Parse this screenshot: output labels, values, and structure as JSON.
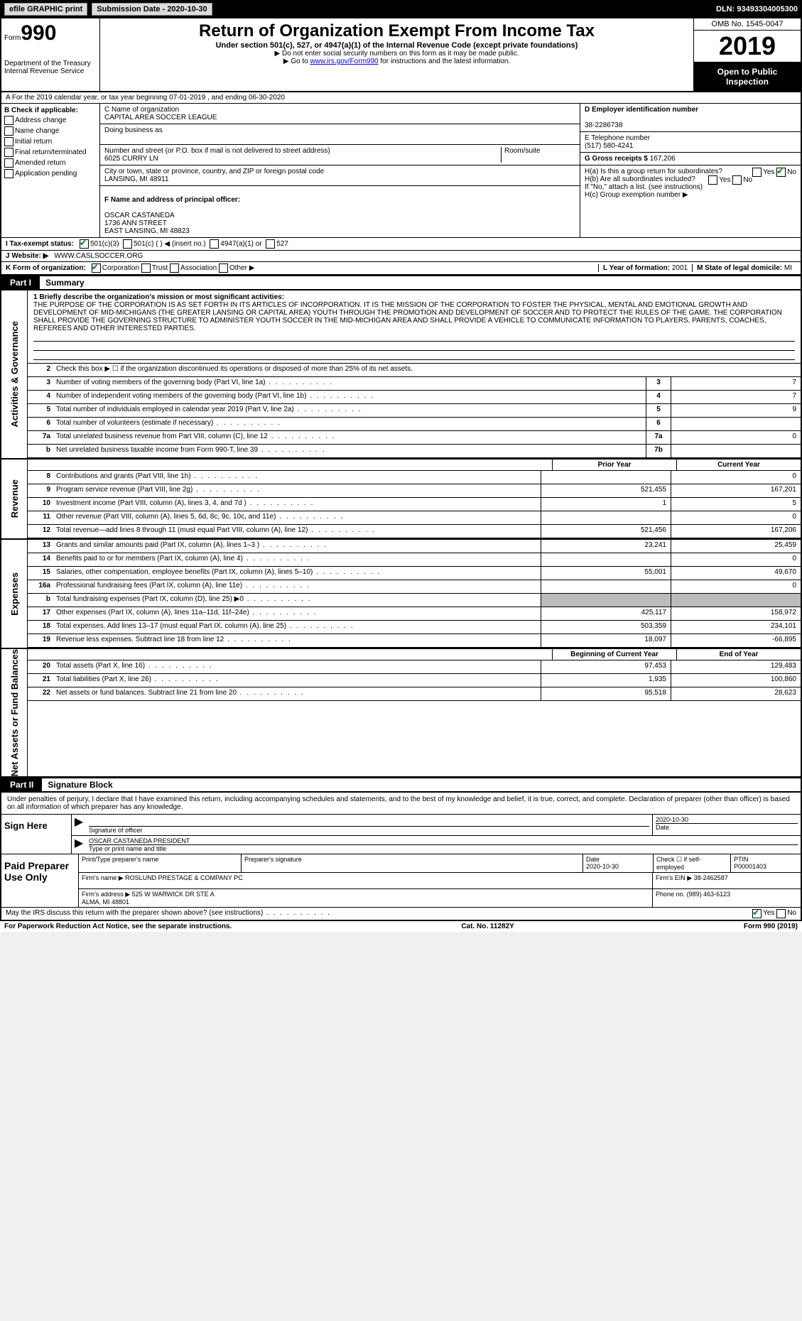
{
  "topbar": {
    "efile": "efile GRAPHIC print",
    "submission": "Submission Date - 2020-10-30",
    "dln": "DLN: 93493304005300"
  },
  "header": {
    "form": "Form",
    "num": "990",
    "dept": "Department of the Treasury\nInternal Revenue Service",
    "title": "Return of Organization Exempt From Income Tax",
    "sub": "Under section 501(c), 527, or 4947(a)(1) of the Internal Revenue Code (except private foundations)",
    "note1": "▶ Do not enter social security numbers on this form as it may be made public.",
    "note2": "▶ Go to ",
    "link": "www.irs.gov/Form990",
    "note3": " for instructions and the latest information.",
    "omb": "OMB No. 1545-0047",
    "year": "2019",
    "open": "Open to Public Inspection"
  },
  "rowA": "A For the 2019 calendar year, or tax year beginning 07-01-2019   , and ending 06-30-2020",
  "colB": {
    "title": "B Check if applicable:",
    "items": [
      "Address change",
      "Name change",
      "Initial return",
      "Final return/terminated",
      "Amended return",
      "Application pending"
    ]
  },
  "colC": {
    "name_lbl": "C Name of organization",
    "name": "CAPITAL AREA SOCCER LEAGUE",
    "dba_lbl": "Doing business as",
    "dba": "",
    "addr_lbl": "Number and street (or P.O. box if mail is not delivered to street address)",
    "addr": "6025 CURRY LN",
    "room_lbl": "Room/suite",
    "city_lbl": "City or town, state or province, country, and ZIP or foreign postal code",
    "city": "LANSING, MI  48911",
    "officer_lbl": "F Name and address of principal officer:",
    "officer": "OSCAR CASTANEDA\n1736 ANN STREET\nEAST LANSING, MI  48823"
  },
  "colD": {
    "ein_lbl": "D Employer identification number",
    "ein": "38-2286738",
    "phone_lbl": "E Telephone number",
    "phone": "(517) 580-4241",
    "gross_lbl": "G Gross receipts $",
    "gross": "167,206",
    "ha": "H(a)  Is this a group return for subordinates?",
    "hb": "H(b)  Are all subordinates included?",
    "hb_note": "If \"No,\" attach a list. (see instructions)",
    "hc": "H(c)  Group exemption number ▶"
  },
  "taxexempt": {
    "lbl": "I   Tax-exempt status:",
    "c3": "501(c)(3)",
    "c": "501(c) (  ) ◀ (insert no.)",
    "a1": "4947(a)(1) or",
    "s527": "527"
  },
  "website": {
    "lbl": "J  Website: ▶",
    "val": "WWW.CASLSOCCER.ORG"
  },
  "orgform": {
    "lbl": "K Form of organization:",
    "opts": [
      "Corporation",
      "Trust",
      "Association",
      "Other ▶"
    ],
    "year_lbl": "L Year of formation:",
    "year": "2001",
    "state_lbl": "M State of legal domicile:",
    "state": "MI"
  },
  "part1": {
    "tab": "Part I",
    "title": "Summary"
  },
  "mission": {
    "lbl": "1   Briefly describe the organization's mission or most significant activities:",
    "text": "THE PURPOSE OF THE CORPORATION IS AS SET FORTH IN ITS ARTICLES OF INCORPORATION. IT IS THE MISSION OF THE CORPORATION TO FOSTER THE PHYSICAL, MENTAL AND EMOTIONAL GROWTH AND DEVELOPMENT OF MID-MICHIGANS (THE GREATER LANSING OR CAPITAL AREA) YOUTH THROUGH THE PROMOTION AND DEVELOPMENT OF SOCCER AND TO PROTECT THE RULES OF THE GAME. THE CORPORATION SHALL PROVIDE THE GOVERNING STRUCTURE TO ADMINISTER YOUTH SOCCER IN THE MID-MICHIGAN AREA AND SHALL PROVIDE A VEHICLE TO COMMUNICATE INFORMATION TO PLAYERS, PARENTS, COACHES, REFEREES AND OTHER INTERESTED PARTIES."
  },
  "gov": {
    "vtab": "Activities & Governance",
    "row2": "Check this box ▶ ☐ if the organization discontinued its operations or disposed of more than 25% of its net assets.",
    "rows": [
      {
        "n": "3",
        "d": "Number of voting members of the governing body (Part VI, line 1a)",
        "b": "3",
        "v": "7"
      },
      {
        "n": "4",
        "d": "Number of independent voting members of the governing body (Part VI, line 1b)",
        "b": "4",
        "v": "7"
      },
      {
        "n": "5",
        "d": "Total number of individuals employed in calendar year 2019 (Part V, line 2a)",
        "b": "5",
        "v": "9"
      },
      {
        "n": "6",
        "d": "Total number of volunteers (estimate if necessary)",
        "b": "6",
        "v": ""
      },
      {
        "n": "7a",
        "d": "Total unrelated business revenue from Part VIII, column (C), line 12",
        "b": "7a",
        "v": "0"
      },
      {
        "n": "b",
        "d": "Net unrelated business taxable income from Form 990-T, line 39",
        "b": "7b",
        "v": ""
      }
    ]
  },
  "revenue": {
    "vtab": "Revenue",
    "h1": "Prior Year",
    "h2": "Current Year",
    "rows": [
      {
        "n": "8",
        "d": "Contributions and grants (Part VIII, line 1h)",
        "p": "",
        "c": "0"
      },
      {
        "n": "9",
        "d": "Program service revenue (Part VIII, line 2g)",
        "p": "521,455",
        "c": "167,201"
      },
      {
        "n": "10",
        "d": "Investment income (Part VIII, column (A), lines 3, 4, and 7d )",
        "p": "1",
        "c": "5"
      },
      {
        "n": "11",
        "d": "Other revenue (Part VIII, column (A), lines 5, 6d, 8c, 9c, 10c, and 11e)",
        "p": "",
        "c": "0"
      },
      {
        "n": "12",
        "d": "Total revenue—add lines 8 through 11 (must equal Part VIII, column (A), line 12)",
        "p": "521,456",
        "c": "167,206"
      }
    ]
  },
  "expenses": {
    "vtab": "Expenses",
    "rows": [
      {
        "n": "13",
        "d": "Grants and similar amounts paid (Part IX, column (A), lines 1–3 )",
        "p": "23,241",
        "c": "25,459"
      },
      {
        "n": "14",
        "d": "Benefits paid to or for members (Part IX, column (A), line 4)",
        "p": "",
        "c": "0"
      },
      {
        "n": "15",
        "d": "Salaries, other compensation, employee benefits (Part IX, column (A), lines 5–10)",
        "p": "55,001",
        "c": "49,670"
      },
      {
        "n": "16a",
        "d": "Professional fundraising fees (Part IX, column (A), line 11e)",
        "p": "",
        "c": "0"
      },
      {
        "n": "b",
        "d": "Total fundraising expenses (Part IX, column (D), line 25) ▶0",
        "p": "gray",
        "c": "gray"
      },
      {
        "n": "17",
        "d": "Other expenses (Part IX, column (A), lines 11a–11d, 11f–24e)",
        "p": "425,117",
        "c": "158,972"
      },
      {
        "n": "18",
        "d": "Total expenses. Add lines 13–17 (must equal Part IX, column (A), line 25)",
        "p": "503,359",
        "c": "234,101"
      },
      {
        "n": "19",
        "d": "Revenue less expenses. Subtract line 18 from line 12",
        "p": "18,097",
        "c": "-66,895"
      }
    ]
  },
  "netassets": {
    "vtab": "Net Assets or Fund Balances",
    "h1": "Beginning of Current Year",
    "h2": "End of Year",
    "rows": [
      {
        "n": "20",
        "d": "Total assets (Part X, line 16)",
        "p": "97,453",
        "c": "129,483"
      },
      {
        "n": "21",
        "d": "Total liabilities (Part X, line 26)",
        "p": "1,935",
        "c": "100,860"
      },
      {
        "n": "22",
        "d": "Net assets or fund balances. Subtract line 21 from line 20",
        "p": "95,518",
        "c": "28,623"
      }
    ]
  },
  "part2": {
    "tab": "Part II",
    "title": "Signature Block"
  },
  "perjury": "Under penalties of perjury, I declare that I have examined this return, including accompanying schedules and statements, and to the best of my knowledge and belief, it is true, correct, and complete. Declaration of preparer (other than officer) is based on all information of which preparer has any knowledge.",
  "sign": {
    "lbl": "Sign Here",
    "sig_lbl": "Signature of officer",
    "date": "2020-10-30",
    "date_lbl": "Date",
    "name": "OSCAR CASTANEDA  PRESIDENT",
    "name_lbl": "Type or print name and title"
  },
  "prep": {
    "lbl": "Paid Preparer Use Only",
    "h1": "Print/Type preparer's name",
    "h2": "Preparer's signature",
    "h3": "Date",
    "date": "2020-10-30",
    "h4": "Check ☐ if self-employed",
    "h5": "PTIN",
    "ptin": "P00001403",
    "firm_lbl": "Firm's name    ▶",
    "firm": "ROSLUND PRESTAGE & COMPANY PC",
    "ein_lbl": "Firm's EIN ▶",
    "ein": "38-2462587",
    "addr_lbl": "Firm's address ▶",
    "addr": "525 W WARWICK DR STE A\nALMA, MI  48801",
    "phone_lbl": "Phone no.",
    "phone": "(989) 463-6123"
  },
  "discuss": {
    "q": "May the IRS discuss this return with the preparer shown above? (see instructions)",
    "yes": "Yes",
    "no": "No"
  },
  "footer": {
    "left": "For Paperwork Reduction Act Notice, see the separate instructions.",
    "mid": "Cat. No. 11282Y",
    "right": "Form 990 (2019)"
  }
}
